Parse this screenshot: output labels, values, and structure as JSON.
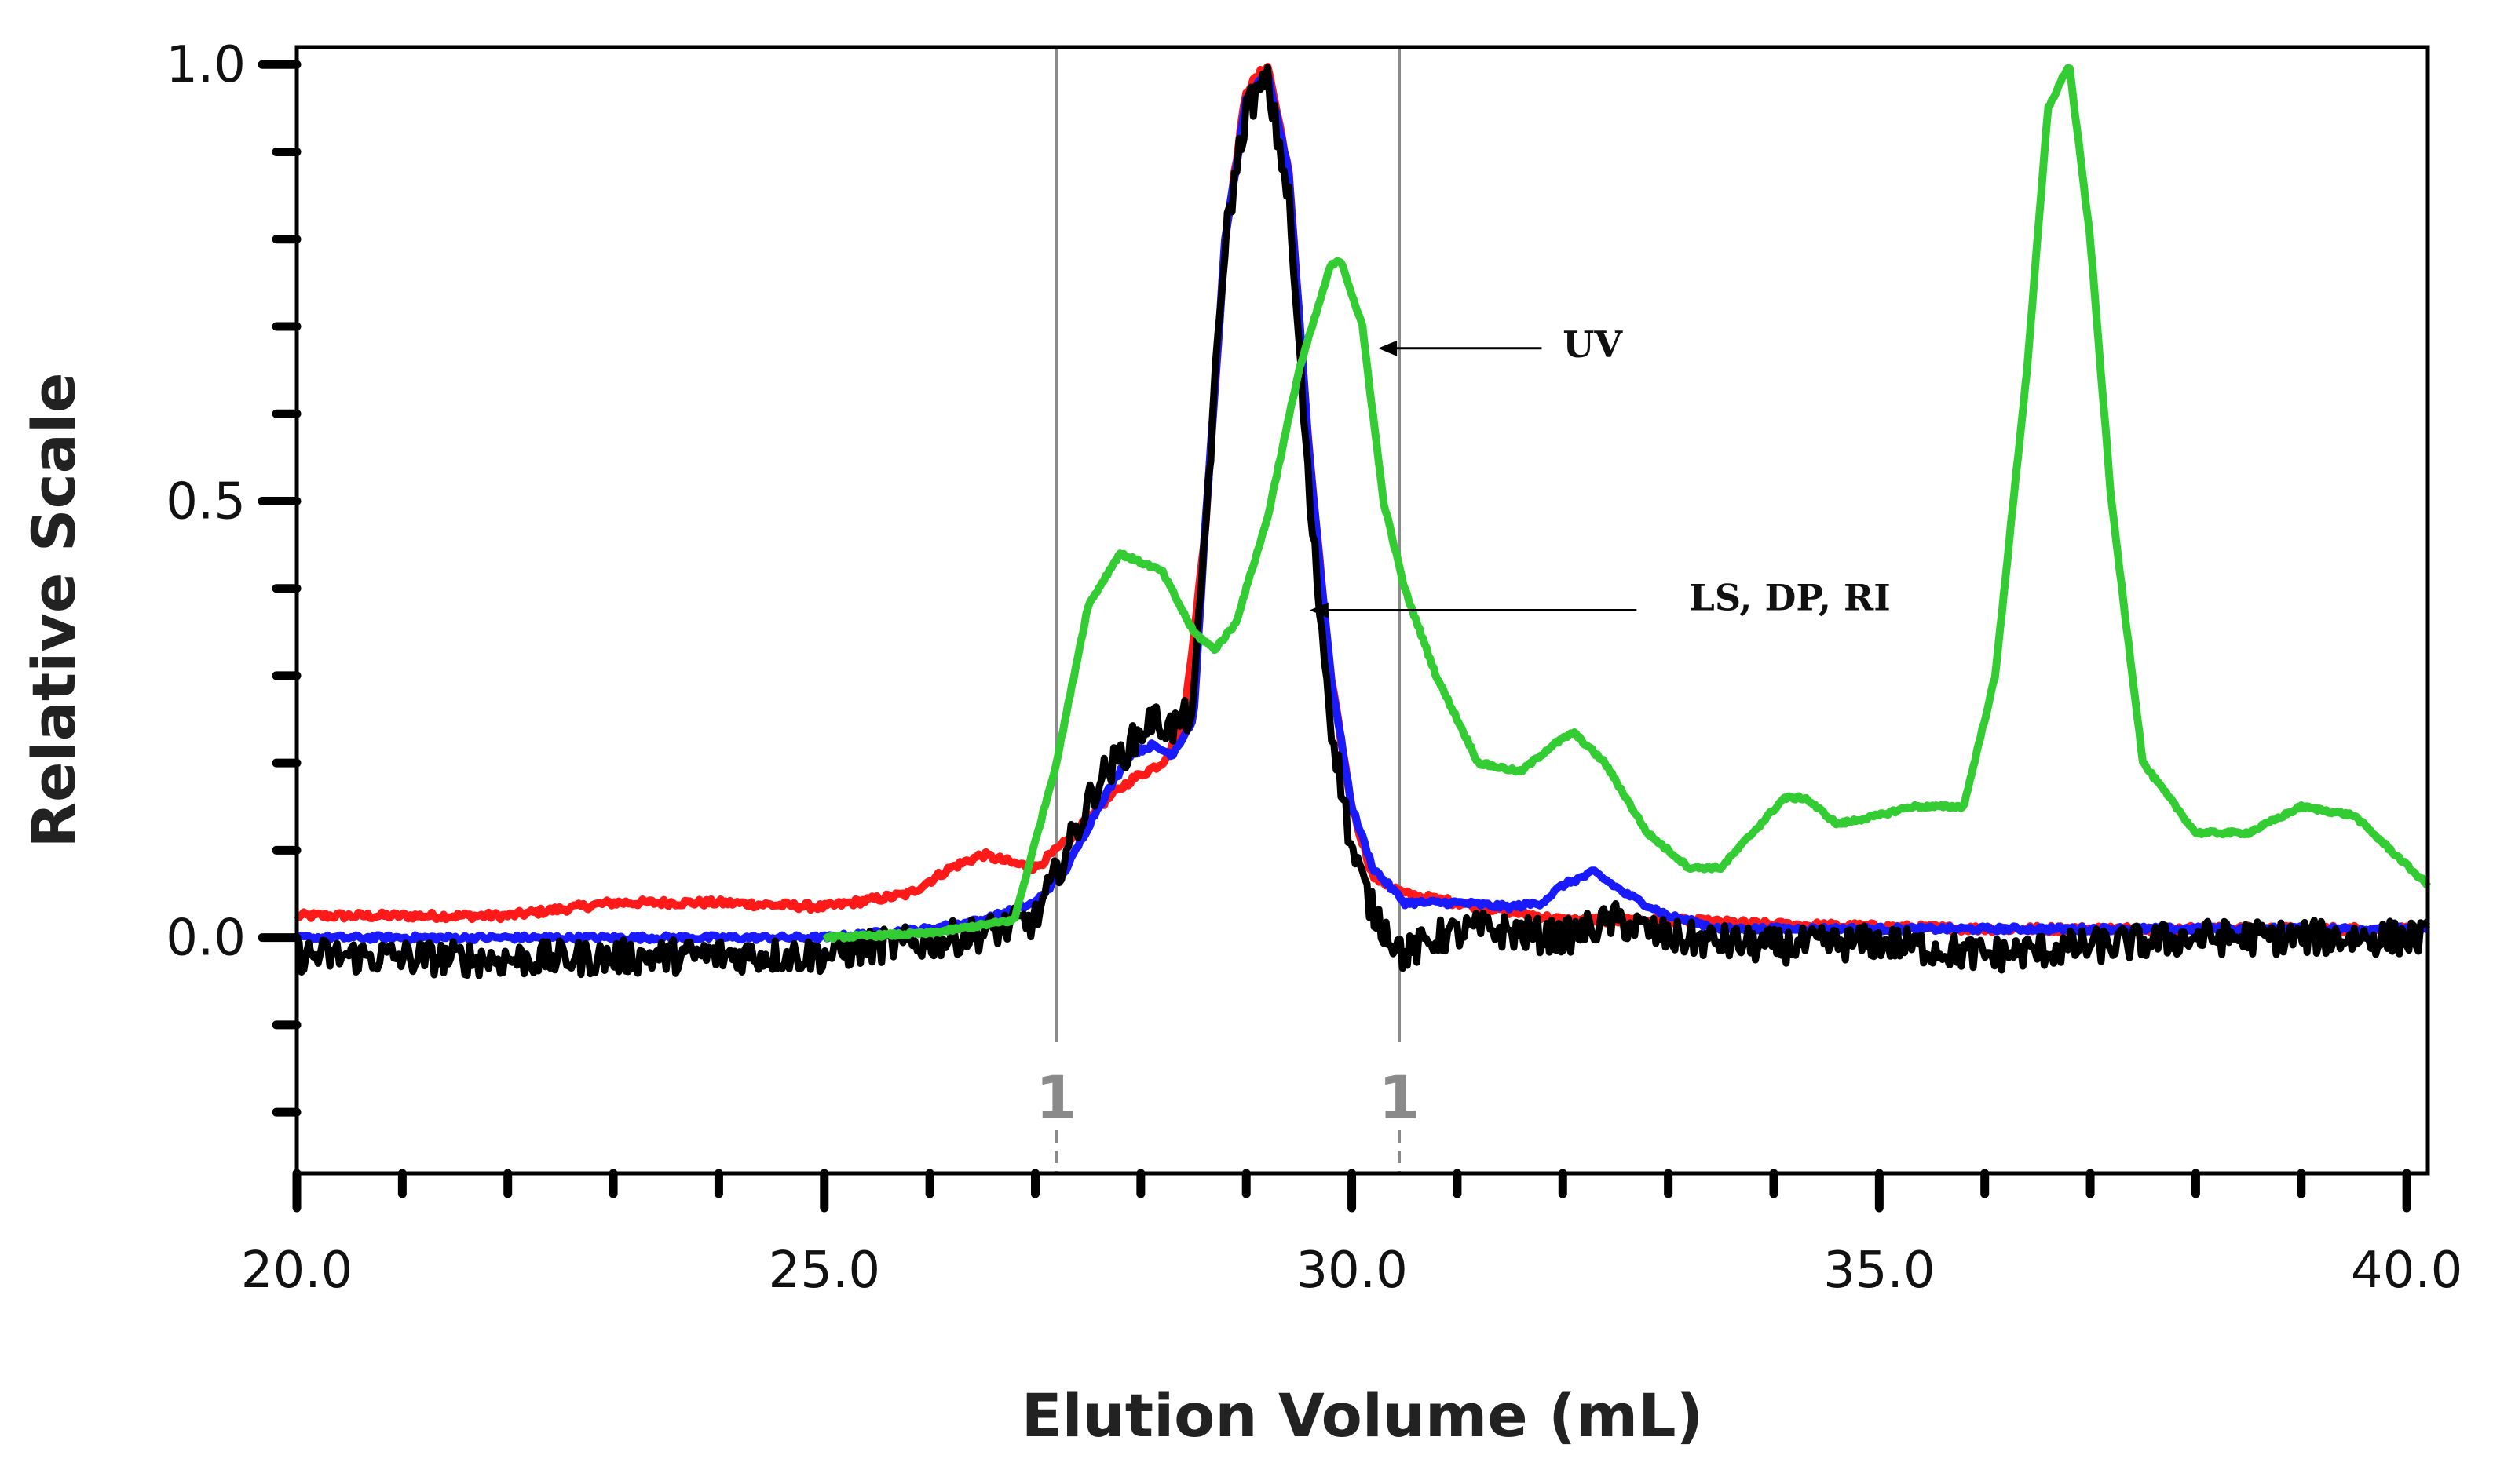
{
  "chart_data": {
    "type": "line",
    "title": "",
    "xlabel": "Elution Volume (mL)",
    "ylabel": "Relative Scale",
    "xlim": [
      20.0,
      40.2
    ],
    "ylim": [
      -0.27,
      1.02
    ],
    "x_ticks": [
      20.0,
      25.0,
      30.0,
      35.0,
      40.0
    ],
    "x_tick_labels": [
      "20.0",
      "25.0",
      "30.0",
      "35.0",
      "40.0"
    ],
    "y_ticks": [
      0.0,
      0.5,
      1.0
    ],
    "y_tick_labels": [
      "0.0",
      "0.5",
      "1.0"
    ],
    "x_minor_step": 1.0,
    "y_minor_step": 0.1,
    "grid": false,
    "vertical_markers": [
      {
        "x": 27.2,
        "label": "1"
      },
      {
        "x": 30.45,
        "label": "1"
      }
    ],
    "annotations": [
      {
        "text": "UV",
        "text_x": 32.0,
        "text_y": 0.665,
        "arrow_from_x": 31.8,
        "arrow_to_x": 30.25,
        "arrow_y": 0.675
      },
      {
        "text": "LS, DP, RI",
        "text_x": 33.2,
        "text_y": 0.375,
        "arrow_from_x": 32.7,
        "arrow_to_x": 29.6,
        "arrow_y": 0.375
      }
    ],
    "series": [
      {
        "name": "LS",
        "color": "#ff1a1a",
        "noise": 0.004,
        "x": [
          20.0,
          22.0,
          23.0,
          24.0,
          25.0,
          25.8,
          26.2,
          26.5,
          26.8,
          27.0,
          27.3,
          27.6,
          27.9,
          28.2,
          28.4,
          28.6,
          28.8,
          29.0,
          29.2,
          29.4,
          29.6,
          29.8,
          30.0,
          30.2,
          30.5,
          31.0,
          31.5,
          32.0,
          33.0,
          34.0,
          36.0,
          40.2
        ],
        "y": [
          0.025,
          0.025,
          0.04,
          0.04,
          0.035,
          0.05,
          0.08,
          0.095,
          0.085,
          0.08,
          0.11,
          0.15,
          0.18,
          0.2,
          0.24,
          0.45,
          0.8,
          0.97,
          1.0,
          0.88,
          0.55,
          0.3,
          0.15,
          0.07,
          0.05,
          0.04,
          0.03,
          0.02,
          0.02,
          0.015,
          0.01,
          0.01
        ]
      },
      {
        "name": "RI",
        "color": "#1a1aff",
        "noise": 0.003,
        "x": [
          20.0,
          25.0,
          26.0,
          26.5,
          27.0,
          27.3,
          27.6,
          27.9,
          28.1,
          28.3,
          28.5,
          28.6,
          28.8,
          29.0,
          29.2,
          29.4,
          29.6,
          29.8,
          30.0,
          30.2,
          30.5,
          31.0,
          31.5,
          31.8,
          32.0,
          32.3,
          32.6,
          33.0,
          33.5,
          34.0,
          40.2
        ],
        "y": [
          0.0,
          0.0,
          0.01,
          0.02,
          0.04,
          0.08,
          0.15,
          0.21,
          0.22,
          0.21,
          0.25,
          0.45,
          0.8,
          0.96,
          0.99,
          0.88,
          0.55,
          0.3,
          0.15,
          0.08,
          0.04,
          0.04,
          0.035,
          0.04,
          0.06,
          0.075,
          0.05,
          0.025,
          0.01,
          0.01,
          0.01
        ]
      },
      {
        "name": "DP",
        "color": "#000000",
        "noise": 0.02,
        "x": [
          20.0,
          22.0,
          24.0,
          25.0,
          25.5,
          26.0,
          26.5,
          27.0,
          27.3,
          27.6,
          27.9,
          28.1,
          28.3,
          28.5,
          28.6,
          28.8,
          29.0,
          29.2,
          29.4,
          29.6,
          29.8,
          30.0,
          30.2,
          30.5,
          30.8,
          31.2,
          31.6,
          32.0,
          32.5,
          33.0,
          34.0,
          35.0,
          36.0,
          37.0,
          38.0,
          40.2
        ],
        "y": [
          -0.02,
          -0.025,
          -0.02,
          -0.02,
          -0.01,
          -0.005,
          0.005,
          0.02,
          0.1,
          0.18,
          0.22,
          0.25,
          0.24,
          0.26,
          0.45,
          0.8,
          0.95,
          0.98,
          0.85,
          0.5,
          0.25,
          0.1,
          0.03,
          -0.02,
          0.0,
          0.01,
          0.005,
          0.0,
          0.02,
          0.0,
          -0.01,
          -0.005,
          -0.02,
          -0.01,
          0.0,
          0.0
        ]
      },
      {
        "name": "UV",
        "color": "#33cc33",
        "noise": 0.002,
        "x": [
          25.0,
          26.0,
          26.8,
          27.2,
          27.5,
          27.8,
          28.2,
          28.5,
          28.7,
          28.9,
          29.2,
          29.5,
          29.8,
          29.9,
          30.1,
          30.3,
          30.5,
          30.8,
          31.2,
          31.6,
          31.9,
          32.1,
          32.4,
          32.8,
          33.2,
          33.5,
          33.8,
          34.1,
          34.3,
          34.6,
          35.0,
          35.3,
          35.8,
          36.1,
          36.4,
          36.6,
          36.8,
          37.0,
          37.2,
          37.5,
          38.0,
          38.5,
          39.0,
          39.5,
          40.2
        ],
        "y": [
          0.0,
          0.005,
          0.02,
          0.2,
          0.38,
          0.44,
          0.42,
          0.35,
          0.33,
          0.36,
          0.48,
          0.65,
          0.77,
          0.775,
          0.7,
          0.5,
          0.4,
          0.3,
          0.2,
          0.19,
          0.22,
          0.235,
          0.2,
          0.12,
          0.08,
          0.08,
          0.12,
          0.16,
          0.16,
          0.13,
          0.14,
          0.15,
          0.15,
          0.3,
          0.65,
          0.95,
          1.0,
          0.8,
          0.5,
          0.2,
          0.12,
          0.12,
          0.15,
          0.14,
          0.06
        ]
      }
    ]
  }
}
